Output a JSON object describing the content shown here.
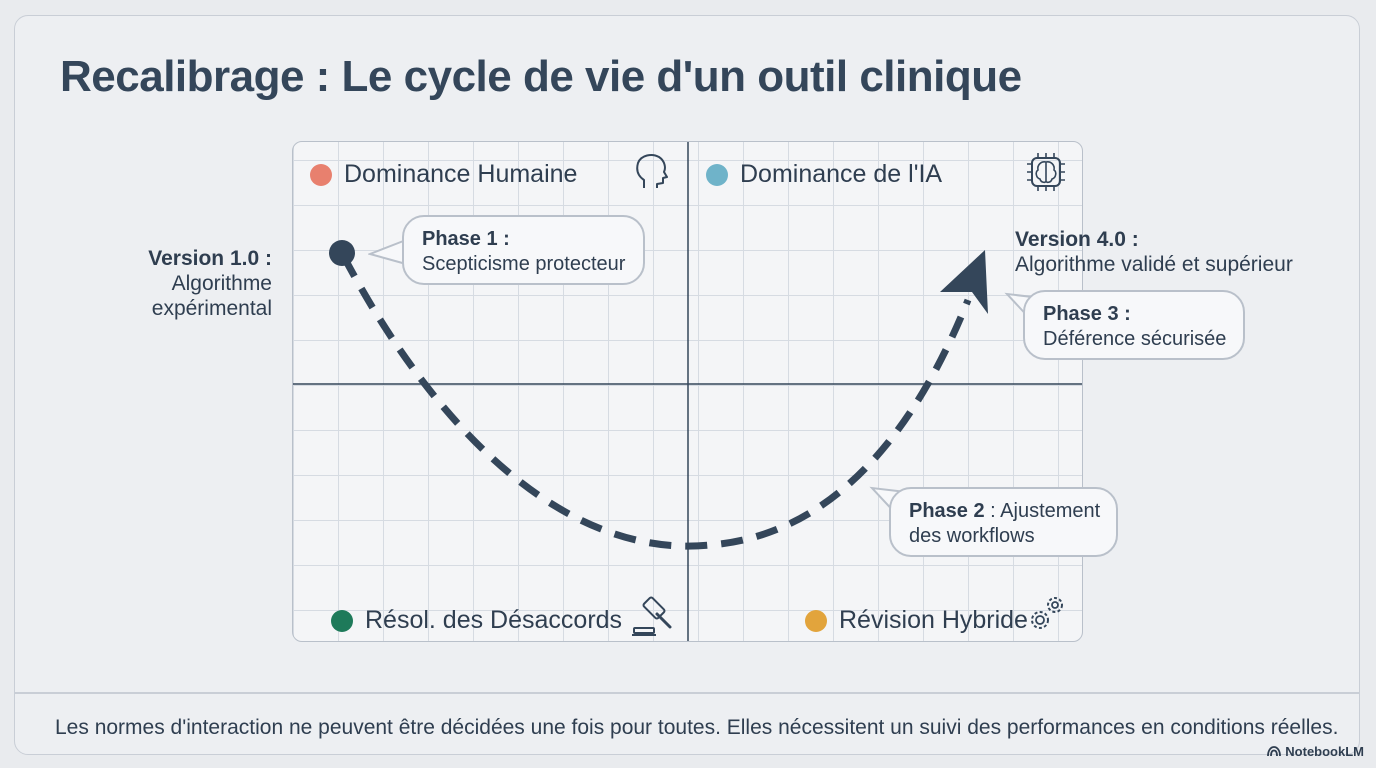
{
  "title": "Recalibrage : Le cycle de vie d'un outil clinique",
  "quadrants": {
    "top_left": {
      "label": "Dominance Humaine",
      "color": "#e8806e",
      "icon": "human-head-icon"
    },
    "top_right": {
      "label": "Dominance de l'IA",
      "color": "#6fb3c9",
      "icon": "ai-brain-chip-icon"
    },
    "bottom_left": {
      "label": "Résol. des Désaccords",
      "color": "#1e7a5a",
      "icon": "gavel-icon"
    },
    "bottom_right": {
      "label": "Révision Hybride",
      "color": "#e2a43c",
      "icon": "gears-icon"
    }
  },
  "start_note": {
    "heading": "Version 1.0 :",
    "line1": "Algorithme",
    "line2": "expérimental"
  },
  "end_note": {
    "heading": "Version 4.0 :",
    "line1": "Algorithme validé et supérieur"
  },
  "phases": [
    {
      "heading": "Phase 1 :",
      "text": "Scepticisme protecteur"
    },
    {
      "heading": "Phase 2",
      "text_inline": " : Ajustement",
      "text": "des workflows"
    },
    {
      "heading": "Phase 3 :",
      "text": "Déférence sécurisée"
    }
  ],
  "footer": "Les normes d'interaction ne peuvent être décidées une fois pour toutes. Elles nécessitent un suivi des performances en conditions réelles.",
  "brand": "NotebookLM",
  "colors": {
    "curve": "#34465a",
    "title": "#34465a",
    "grid": "#d6dbe2"
  }
}
